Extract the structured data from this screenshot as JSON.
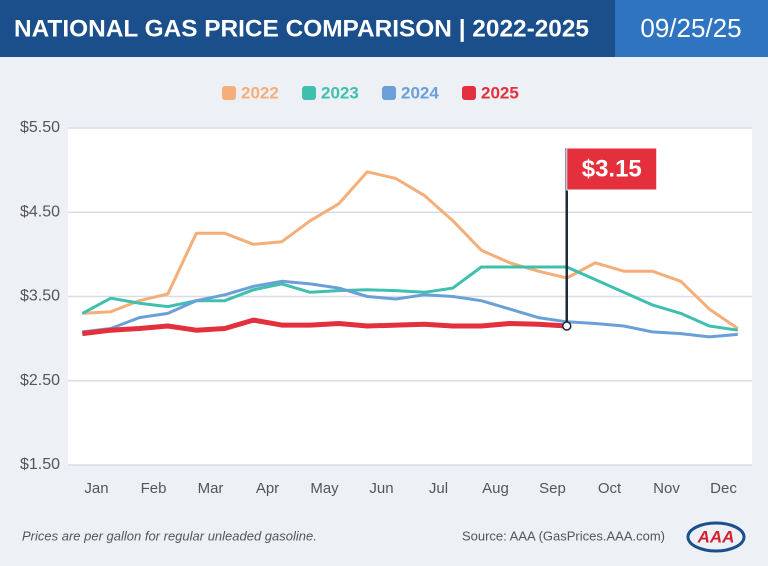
{
  "chart_data": {
    "type": "line",
    "title": "NATIONAL GAS PRICE COMPARISON | 2022-2025",
    "date": "09/25/25",
    "categories": [
      "Jan",
      null,
      "Feb",
      null,
      "Mar",
      null,
      "Apr",
      null,
      "May",
      null,
      "Jun",
      null,
      "Jul",
      null,
      "Aug",
      null,
      "Sep",
      null,
      "Oct",
      null,
      "Nov",
      null,
      "Dec",
      null
    ],
    "series": [
      {
        "name": "2022",
        "color": "#f5ae78",
        "values": [
          3.3,
          3.32,
          3.45,
          3.53,
          4.25,
          4.25,
          4.12,
          4.15,
          4.4,
          4.6,
          4.98,
          4.9,
          4.7,
          4.4,
          4.05,
          3.9,
          3.8,
          3.72,
          3.9,
          3.8,
          3.8,
          3.68,
          3.35,
          3.12
        ]
      },
      {
        "name": "2023",
        "color": "#3fbfae",
        "values": [
          3.3,
          3.48,
          3.42,
          3.38,
          3.45,
          3.45,
          3.58,
          3.65,
          3.55,
          3.57,
          3.58,
          3.57,
          3.55,
          3.6,
          3.85,
          3.85,
          3.85,
          3.85,
          3.7,
          3.55,
          3.4,
          3.3,
          3.15,
          3.1
        ]
      },
      {
        "name": "2024",
        "color": "#6a9fd8",
        "values": [
          3.08,
          3.12,
          3.25,
          3.3,
          3.45,
          3.52,
          3.62,
          3.68,
          3.65,
          3.6,
          3.5,
          3.47,
          3.52,
          3.5,
          3.45,
          3.35,
          3.25,
          3.2,
          3.18,
          3.15,
          3.08,
          3.06,
          3.02,
          3.05
        ]
      },
      {
        "name": "2025",
        "color": "#e3303c",
        "values": [
          3.06,
          3.1,
          3.12,
          3.15,
          3.1,
          3.12,
          3.22,
          3.16,
          3.16,
          3.18,
          3.15,
          3.16,
          3.17,
          3.15,
          3.15,
          3.18,
          3.17,
          3.15,
          null,
          null,
          null,
          null,
          null,
          null
        ],
        "value_labels": [
          null,
          null,
          null,
          null,
          null,
          null,
          null,
          null,
          null,
          null,
          null,
          null,
          null,
          null,
          null,
          null,
          null,
          "$3.15",
          null,
          null,
          null,
          null,
          null,
          null
        ]
      }
    ],
    "ylim": [
      1.5,
      5.5
    ],
    "yticks": [
      {
        "value": 1.5,
        "label": "$1.50"
      },
      {
        "value": 2.5,
        "label": "$2.50"
      },
      {
        "value": 3.5,
        "label": "$3.50"
      },
      {
        "value": 4.5,
        "label": "$4.50"
      },
      {
        "value": 5.5,
        "label": "$5.50"
      }
    ],
    "grid": true,
    "footnote": "Prices are per gallon for regular unleaded gasoline.",
    "source": "Source: AAA (GasPrices.AAA.com)",
    "logo": "AAA"
  }
}
